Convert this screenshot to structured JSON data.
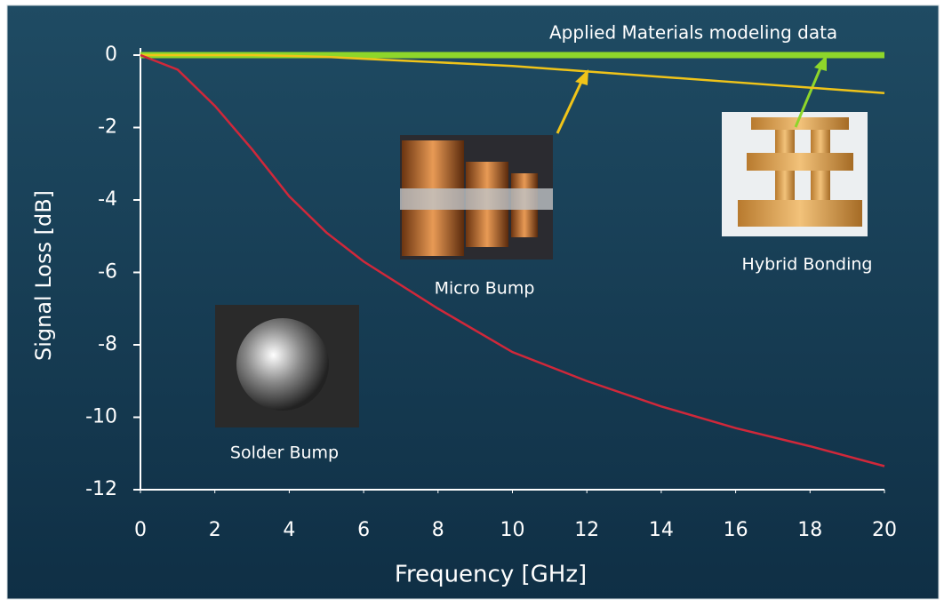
{
  "chart_data": {
    "type": "line",
    "annotation": "Applied Materials modeling data",
    "xlabel": "Frequency [GHz]",
    "ylabel": "Signal Loss [dB]",
    "x": [
      0,
      1,
      2,
      3,
      4,
      5,
      6,
      8,
      10,
      12,
      14,
      16,
      18,
      20
    ],
    "series": [
      {
        "name": "Solder Bump",
        "color": "#d0283a",
        "values": [
          0,
          -0.4,
          -1.4,
          -2.6,
          -3.9,
          -4.9,
          -5.7,
          -7.0,
          -8.2,
          -9.0,
          -9.7,
          -10.3,
          -10.8,
          -11.35
        ]
      },
      {
        "name": "Micro Bump",
        "color": "#f0c419",
        "values": [
          0,
          0,
          0,
          0,
          -0.02,
          -0.05,
          -0.1,
          -0.2,
          -0.3,
          -0.45,
          -0.6,
          -0.75,
          -0.9,
          -1.05
        ]
      },
      {
        "name": "Hybrid Bonding",
        "color": "#8ed62a",
        "values": [
          0,
          0,
          0,
          0,
          0,
          0,
          0,
          0,
          0,
          0,
          0,
          0,
          0,
          0
        ]
      }
    ],
    "xlim": [
      0,
      20
    ],
    "xticks": [
      0,
      2,
      4,
      6,
      8,
      10,
      12,
      14,
      16,
      18,
      20
    ],
    "ylim": [
      -12,
      0
    ],
    "yticks": [
      0,
      -2,
      -4,
      -6,
      -8,
      -10,
      -12
    ]
  }
}
